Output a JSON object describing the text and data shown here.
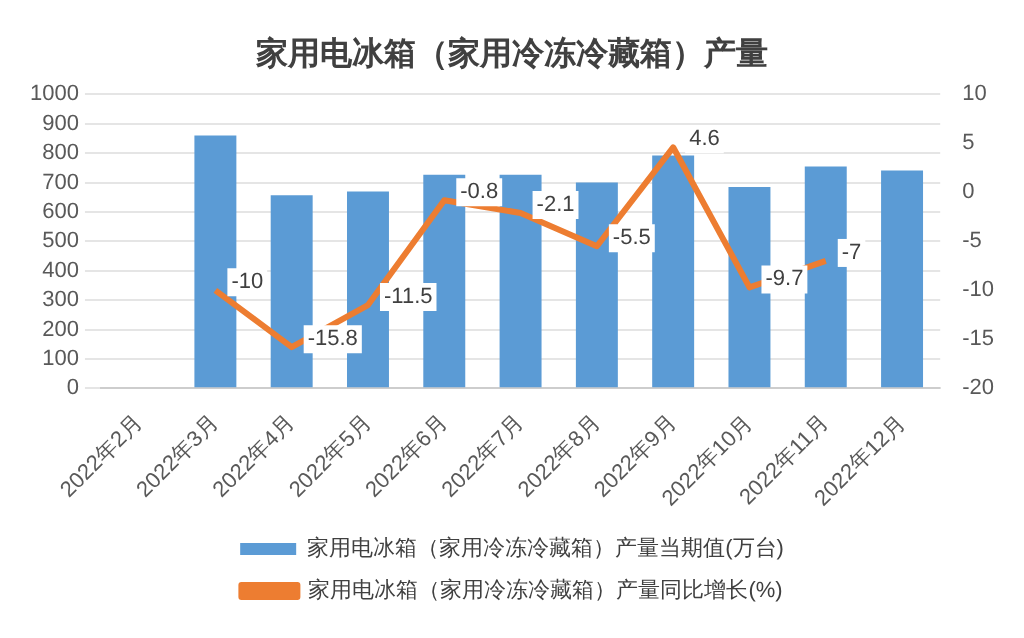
{
  "chart_data": {
    "type": "bar",
    "title": "家用电冰箱（家用冷冻冷藏箱）产量",
    "categories": [
      "2022年2月",
      "2022年3月",
      "2022年4月",
      "2022年5月",
      "2022年6月",
      "2022年7月",
      "2022年8月",
      "2022年9月",
      "2022年10月",
      "2022年11月",
      "2022年12月"
    ],
    "series": [
      {
        "name": "家用电冰箱（家用冷冻冷藏箱）产量当期值(万台)",
        "color": "#5b9bd5",
        "values": [
          null,
          860,
          657,
          670,
          727,
          727,
          700,
          792,
          685,
          755,
          741
        ]
      },
      {
        "name": "家用电冰箱（家用冷冻冷藏箱）产量同比增长(%)",
        "type": "line",
        "axis": "y2",
        "color": "#ed7d31",
        "values": [
          null,
          -10,
          -15.8,
          -11.5,
          -0.8,
          -2.1,
          -5.5,
          4.6,
          -9.7,
          -7,
          null
        ],
        "value_labels": [
          null,
          "-10",
          "-15.8",
          "-11.5",
          "-0.8",
          "-2.1",
          "-5.5",
          "4.6",
          "-9.7",
          "-7",
          null
        ]
      }
    ],
    "ylim": [
      0,
      1000
    ],
    "yticks": [
      0,
      100,
      200,
      300,
      400,
      500,
      600,
      700,
      800,
      900,
      1000
    ],
    "y2lim": [
      -20,
      10
    ],
    "y2ticks": [
      -20,
      -15,
      -10,
      -5,
      0,
      5,
      10
    ],
    "grid": "y",
    "legend": "bottom",
    "marker": "none",
    "line_style": "solid"
  }
}
